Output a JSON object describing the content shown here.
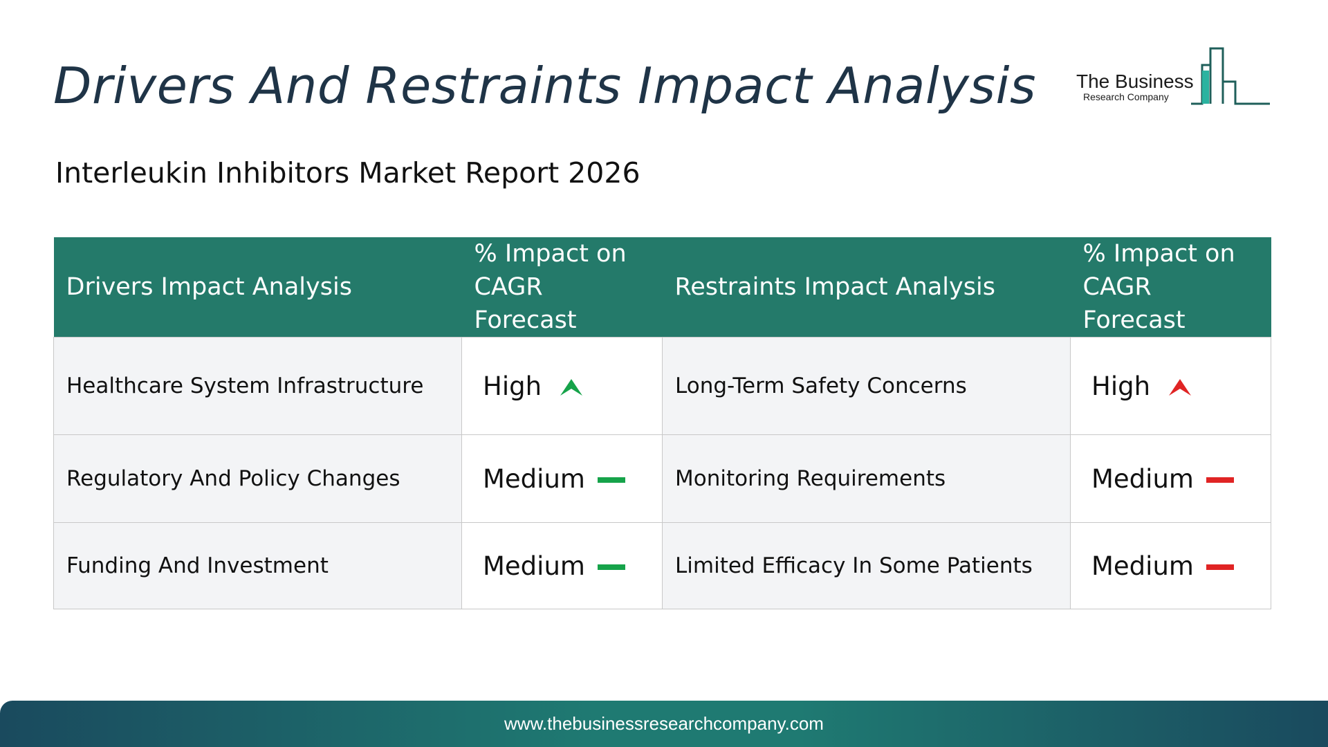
{
  "title": "Drivers And Restraints Impact Analysis",
  "logo": {
    "line1": "The Business",
    "line2": "Research Company"
  },
  "subtitle": "Interleukin Inhibitors Market Report 2026",
  "table": {
    "headers": [
      "Drivers Impact Analysis",
      "% Impact on CAGR Forecast",
      "Restraints Impact Analysis",
      "% Impact on CAGR Forecast"
    ],
    "rows": [
      {
        "driver": "Healthcare System Infrastructure",
        "driver_impact": "High",
        "driver_icon": "up-arrow-icon",
        "restraint": "Long-Term Safety Concerns",
        "restraint_impact": "High",
        "restraint_icon": "up-arrow-icon"
      },
      {
        "driver": "Regulatory And Policy Changes",
        "driver_impact": "Medium",
        "driver_icon": "dash-icon",
        "restraint": "Monitoring Requirements",
        "restraint_impact": "Medium",
        "restraint_icon": "dash-icon"
      },
      {
        "driver": "Funding And Investment",
        "driver_impact": "Medium",
        "driver_icon": "dash-icon",
        "restraint": "Limited Efficacy In Some Patients",
        "restraint_impact": "Medium",
        "restraint_icon": "dash-icon"
      }
    ]
  },
  "colors": {
    "header_bg": "#247a6a",
    "driver_color": "#16a34a",
    "restraint_color": "#e02424",
    "title_color": "#1f3447"
  },
  "footer": {
    "url": "www.thebusinessresearchcompany.com"
  }
}
